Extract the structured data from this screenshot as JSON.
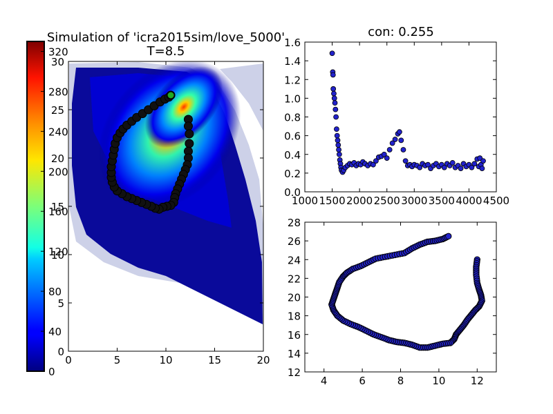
{
  "chart_data": [
    {
      "id": "heatmap",
      "type": "heatmap",
      "title_line1": "Simulation of 'icra2015sim/love_5000'",
      "title_line2": "T=8.5",
      "xlim": [
        0,
        20
      ],
      "ylim": [
        0,
        30
      ],
      "x_ticks": [
        "0",
        "5",
        "10",
        "15",
        "20"
      ],
      "y_ticks": [
        "0",
        "5",
        "10",
        "15",
        "20",
        "25",
        "30"
      ],
      "colorbar": {
        "range": [
          0,
          330
        ],
        "ticks": [
          "0",
          "40",
          "80",
          "120",
          "160",
          "200",
          "240",
          "280",
          "320"
        ],
        "colormap": "jet"
      },
      "path": [
        [
          12.3,
          24.0
        ],
        [
          12.3,
          23.3
        ],
        [
          12.4,
          22.5
        ],
        [
          12.4,
          21.5
        ],
        [
          12.3,
          20.7
        ],
        [
          12.3,
          20.0
        ],
        [
          12.2,
          19.3
        ],
        [
          12.0,
          18.8
        ],
        [
          11.8,
          18.3
        ],
        [
          11.6,
          17.8
        ],
        [
          11.4,
          17.3
        ],
        [
          11.2,
          16.8
        ],
        [
          11.0,
          16.3
        ],
        [
          10.9,
          15.9
        ],
        [
          10.8,
          15.4
        ],
        [
          10.5,
          15.1
        ],
        [
          10.1,
          15.0
        ],
        [
          9.7,
          14.9
        ],
        [
          9.3,
          14.7
        ],
        [
          8.9,
          14.8
        ],
        [
          8.5,
          15.0
        ],
        [
          8.0,
          15.2
        ],
        [
          7.5,
          15.4
        ],
        [
          7.0,
          15.6
        ],
        [
          6.5,
          15.8
        ],
        [
          6.0,
          16.0
        ],
        [
          5.5,
          16.3
        ],
        [
          5.0,
          16.6
        ],
        [
          4.7,
          17.0
        ],
        [
          4.5,
          17.5
        ],
        [
          4.4,
          18.0
        ],
        [
          4.4,
          18.5
        ],
        [
          4.4,
          19.1
        ],
        [
          4.5,
          19.7
        ],
        [
          4.6,
          20.3
        ],
        [
          4.7,
          20.9
        ],
        [
          4.8,
          21.5
        ],
        [
          5.0,
          22.1
        ],
        [
          5.3,
          22.6
        ],
        [
          5.6,
          23.0
        ],
        [
          6.0,
          23.4
        ],
        [
          6.5,
          23.8
        ],
        [
          7.0,
          24.2
        ],
        [
          7.6,
          24.6
        ],
        [
          8.2,
          25.0
        ],
        [
          8.8,
          25.4
        ],
        [
          9.4,
          25.8
        ],
        [
          9.9,
          26.1
        ],
        [
          10.3,
          26.3
        ],
        [
          10.5,
          26.5
        ]
      ],
      "path_end_marker": [
        10.5,
        26.5
      ],
      "density_peak": [
        12.8,
        26.0
      ]
    },
    {
      "id": "convergence",
      "type": "scatter",
      "title": "con: 0.255",
      "xlim": [
        1000,
        4500
      ],
      "ylim": [
        0.0,
        1.6
      ],
      "x_ticks": [
        "1000",
        "1500",
        "2000",
        "2500",
        "3000",
        "3500",
        "4000",
        "4500"
      ],
      "y_ticks": [
        "0.0",
        "0.2",
        "0.4",
        "0.6",
        "0.8",
        "1.0",
        "1.2",
        "1.4",
        "1.6"
      ],
      "marker_color": "#2222cc",
      "points": [
        [
          1500,
          1.48
        ],
        [
          1510,
          1.28
        ],
        [
          1515,
          1.25
        ],
        [
          1520,
          1.1
        ],
        [
          1530,
          1.05
        ],
        [
          1540,
          1.0
        ],
        [
          1550,
          0.95
        ],
        [
          1560,
          0.88
        ],
        [
          1570,
          0.8
        ],
        [
          1580,
          0.67
        ],
        [
          1590,
          0.6
        ],
        [
          1600,
          0.55
        ],
        [
          1610,
          0.5
        ],
        [
          1620,
          0.45
        ],
        [
          1630,
          0.4
        ],
        [
          1640,
          0.34
        ],
        [
          1650,
          0.3
        ],
        [
          1660,
          0.26
        ],
        [
          1670,
          0.23
        ],
        [
          1690,
          0.21
        ],
        [
          1710,
          0.23
        ],
        [
          1740,
          0.26
        ],
        [
          1780,
          0.28
        ],
        [
          1820,
          0.3
        ],
        [
          1860,
          0.29
        ],
        [
          1900,
          0.31
        ],
        [
          1940,
          0.28
        ],
        [
          1980,
          0.3
        ],
        [
          2020,
          0.29
        ],
        [
          2060,
          0.32
        ],
        [
          2100,
          0.3
        ],
        [
          2150,
          0.28
        ],
        [
          2200,
          0.3
        ],
        [
          2250,
          0.29
        ],
        [
          2300,
          0.33
        ],
        [
          2350,
          0.37
        ],
        [
          2400,
          0.38
        ],
        [
          2450,
          0.4
        ],
        [
          2500,
          0.36
        ],
        [
          2550,
          0.45
        ],
        [
          2600,
          0.52
        ],
        [
          2650,
          0.56
        ],
        [
          2700,
          0.62
        ],
        [
          2730,
          0.64
        ],
        [
          2760,
          0.55
        ],
        [
          2800,
          0.45
        ],
        [
          2840,
          0.33
        ],
        [
          2880,
          0.28
        ],
        [
          2920,
          0.29
        ],
        [
          2960,
          0.27
        ],
        [
          3000,
          0.29
        ],
        [
          3050,
          0.28
        ],
        [
          3100,
          0.26
        ],
        [
          3150,
          0.3
        ],
        [
          3200,
          0.28
        ],
        [
          3250,
          0.29
        ],
        [
          3300,
          0.25
        ],
        [
          3350,
          0.28
        ],
        [
          3400,
          0.3
        ],
        [
          3450,
          0.27
        ],
        [
          3500,
          0.29
        ],
        [
          3550,
          0.26
        ],
        [
          3600,
          0.3
        ],
        [
          3650,
          0.28
        ],
        [
          3700,
          0.31
        ],
        [
          3750,
          0.26
        ],
        [
          3800,
          0.28
        ],
        [
          3850,
          0.25
        ],
        [
          3900,
          0.3
        ],
        [
          3950,
          0.27
        ],
        [
          4000,
          0.29
        ],
        [
          4050,
          0.26
        ],
        [
          4100,
          0.3
        ],
        [
          4150,
          0.35
        ],
        [
          4180,
          0.27
        ],
        [
          4200,
          0.36
        ],
        [
          4220,
          0.29
        ],
        [
          4240,
          0.25
        ],
        [
          4260,
          0.33
        ]
      ]
    },
    {
      "id": "trajectory",
      "type": "scatter",
      "title": "",
      "xlim": [
        3,
        13
      ],
      "ylim": [
        12,
        28
      ],
      "x_ticks": [
        "4",
        "6",
        "8",
        "10",
        "12"
      ],
      "y_ticks": [
        "12",
        "14",
        "16",
        "18",
        "20",
        "22",
        "24",
        "26",
        "28"
      ],
      "marker_color": "#2222cc",
      "points": [
        [
          12.0,
          24.0
        ],
        [
          11.95,
          23.2
        ],
        [
          11.95,
          22.4
        ],
        [
          12.0,
          21.5
        ],
        [
          12.1,
          20.8
        ],
        [
          12.2,
          20.2
        ],
        [
          12.25,
          19.6
        ],
        [
          12.1,
          19.0
        ],
        [
          11.9,
          18.6
        ],
        [
          11.7,
          18.1
        ],
        [
          11.5,
          17.6
        ],
        [
          11.3,
          17.0
        ],
        [
          11.1,
          16.5
        ],
        [
          10.9,
          16.0
        ],
        [
          10.8,
          15.5
        ],
        [
          10.6,
          15.1
        ],
        [
          10.2,
          15.0
        ],
        [
          9.8,
          14.8
        ],
        [
          9.4,
          14.6
        ],
        [
          9.0,
          14.6
        ],
        [
          8.6,
          14.9
        ],
        [
          8.2,
          15.1
        ],
        [
          7.8,
          15.2
        ],
        [
          7.4,
          15.4
        ],
        [
          7.0,
          15.7
        ],
        [
          6.6,
          16.0
        ],
        [
          6.2,
          16.4
        ],
        [
          5.8,
          16.8
        ],
        [
          5.4,
          17.1
        ],
        [
          5.0,
          17.5
        ],
        [
          4.7,
          18.0
        ],
        [
          4.5,
          18.6
        ],
        [
          4.4,
          19.2
        ],
        [
          4.5,
          19.8
        ],
        [
          4.6,
          20.4
        ],
        [
          4.7,
          21.0
        ],
        [
          4.8,
          21.6
        ],
        [
          5.0,
          22.2
        ],
        [
          5.2,
          22.6
        ],
        [
          5.5,
          23.0
        ],
        [
          5.9,
          23.3
        ],
        [
          6.3,
          23.7
        ],
        [
          6.7,
          24.1
        ],
        [
          7.2,
          24.3
        ],
        [
          7.7,
          24.5
        ],
        [
          8.2,
          24.7
        ],
        [
          8.6,
          25.2
        ],
        [
          9.0,
          25.6
        ],
        [
          9.4,
          25.9
        ],
        [
          9.8,
          26.0
        ],
        [
          10.2,
          26.2
        ],
        [
          10.5,
          26.5
        ]
      ]
    }
  ]
}
